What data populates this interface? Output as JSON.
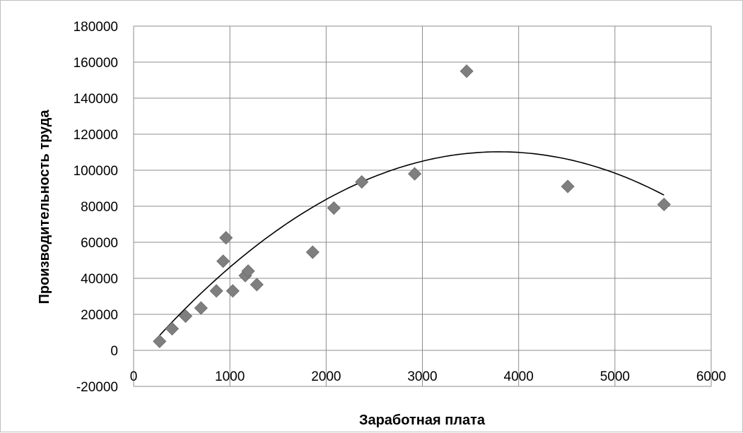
{
  "chart_data": {
    "type": "scatter",
    "title": "",
    "xlabel": "Заработная плата",
    "ylabel": "Производительность труда",
    "xlim": [
      0,
      6000
    ],
    "ylim": [
      -20000,
      180000
    ],
    "x_ticks": [
      "0",
      "1000",
      "2000",
      "3000",
      "4000",
      "5000",
      "6000"
    ],
    "y_ticks": [
      "-20000",
      "0",
      "20000",
      "40000",
      "60000",
      "80000",
      "100000",
      "120000",
      "140000",
      "160000",
      "180000"
    ],
    "grid": true,
    "legend": "none",
    "marker": "diamond",
    "marker_color": "#7f7f7f",
    "trendline_color": "#000000",
    "gridline_color": "#8c8c8c",
    "x": [
      270,
      400,
      540,
      700,
      860,
      930,
      960,
      1030,
      1160,
      1190,
      1280,
      1860,
      2080,
      2370,
      2920,
      3460,
      4510,
      5510
    ],
    "y": [
      5000,
      12000,
      19000,
      23500,
      33000,
      49500,
      62500,
      33000,
      41500,
      44000,
      36500,
      54500,
      79000,
      93500,
      98000,
      155000,
      91000,
      81000
    ],
    "trendline": {
      "type": "polynomial-2",
      "x_range": [
        270,
        5510
      ],
      "coefficients": [
        -7870,
        62.2,
        -0.00819
      ]
    }
  }
}
